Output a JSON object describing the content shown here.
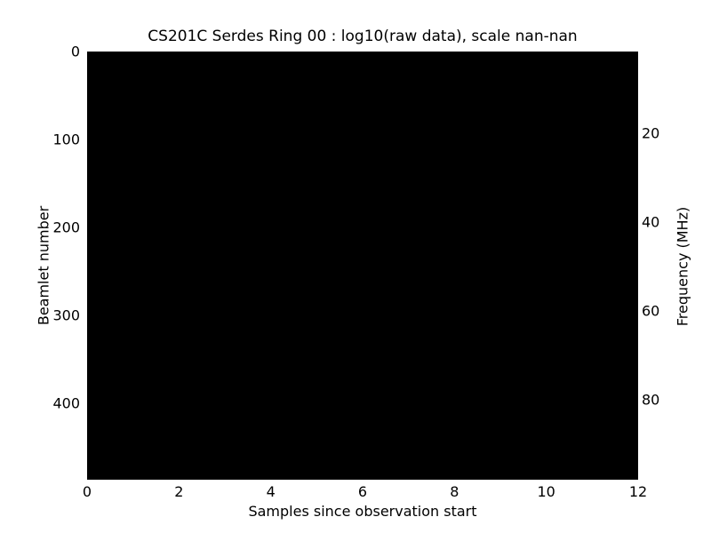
{
  "chart_data": {
    "type": "heatmap",
    "title": "CS201C Serdes Ring 00 : log10(raw data), scale nan-nan",
    "xlabel": "Samples since observation start",
    "ylabel_left": "Beamlet number",
    "ylabel_right": "Frequency (MHz)",
    "xlim": [
      0,
      12
    ],
    "ylim_left_top_to_bottom": [
      -0.5,
      487.5
    ],
    "ylim_right_top_to_bottom": [
      1.6,
      98.0
    ],
    "xticks": [
      0,
      2,
      4,
      6,
      8,
      10,
      12
    ],
    "yticks_left": [
      0,
      100,
      200,
      300,
      400
    ],
    "yticks_right": [
      20,
      40,
      60,
      80
    ],
    "grid": false,
    "legend": null,
    "scale_min": "nan",
    "scale_max": "nan",
    "values_summary": "entire heatmap is uniform black; all cells rendered at the same (nan/undefined) level, no visible structure",
    "plot_fill_color": "#000000"
  },
  "colors": {
    "background": "#ffffff",
    "plot_fill": "#000000",
    "text": "#000000"
  }
}
